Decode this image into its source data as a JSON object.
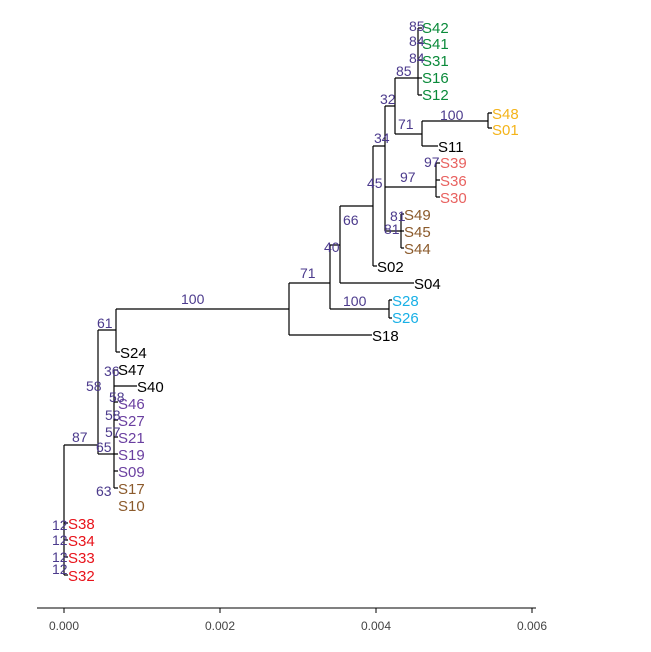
{
  "axis": {
    "ticks": [
      "0.000",
      "0.002",
      "0.004",
      "0.006"
    ]
  },
  "colors": {
    "black": "#000000",
    "green": "#0a8a3a",
    "gold": "#f4b41a",
    "salmon": "#e8615f",
    "brown": "#8b5a2b",
    "cyan": "#19b0e6",
    "purple": "#6a3fa0",
    "red": "#e8121a",
    "bootstrap": "#4b3a8c"
  },
  "tips": [
    {
      "label": "S42",
      "color": "green"
    },
    {
      "label": "S41",
      "color": "green"
    },
    {
      "label": "S31",
      "color": "green"
    },
    {
      "label": "S16",
      "color": "green"
    },
    {
      "label": "S12",
      "color": "green"
    },
    {
      "label": "S48",
      "color": "gold"
    },
    {
      "label": "S01",
      "color": "gold"
    },
    {
      "label": "S11",
      "color": "black"
    },
    {
      "label": "S39",
      "color": "salmon"
    },
    {
      "label": "S36",
      "color": "salmon"
    },
    {
      "label": "S30",
      "color": "salmon"
    },
    {
      "label": "S49",
      "color": "brown"
    },
    {
      "label": "S45",
      "color": "brown"
    },
    {
      "label": "S44",
      "color": "brown"
    },
    {
      "label": "S02",
      "color": "black"
    },
    {
      "label": "S04",
      "color": "black"
    },
    {
      "label": "S28",
      "color": "cyan"
    },
    {
      "label": "S26",
      "color": "cyan"
    },
    {
      "label": "S18",
      "color": "black"
    },
    {
      "label": "S24",
      "color": "black"
    },
    {
      "label": "S47",
      "color": "black"
    },
    {
      "label": "S40",
      "color": "black"
    },
    {
      "label": "S46",
      "color": "purple"
    },
    {
      "label": "S27",
      "color": "purple"
    },
    {
      "label": "S21",
      "color": "purple"
    },
    {
      "label": "S19",
      "color": "purple"
    },
    {
      "label": "S09",
      "color": "purple"
    },
    {
      "label": "S17",
      "color": "brown"
    },
    {
      "label": "S10",
      "color": "brown"
    },
    {
      "label": "S38",
      "color": "red"
    },
    {
      "label": "S34",
      "color": "red"
    },
    {
      "label": "S33",
      "color": "red"
    },
    {
      "label": "S32",
      "color": "red"
    }
  ],
  "bootstrap": [
    "85",
    "84",
    "84",
    "85",
    "32",
    "100",
    "71",
    "34",
    "97",
    "97",
    "45",
    "81",
    "81",
    "66",
    "40",
    "71",
    "100",
    "100",
    "61",
    "36",
    "58",
    "58",
    "58",
    "57",
    "65",
    "63",
    "87",
    "12",
    "12",
    "12",
    "12"
  ]
}
